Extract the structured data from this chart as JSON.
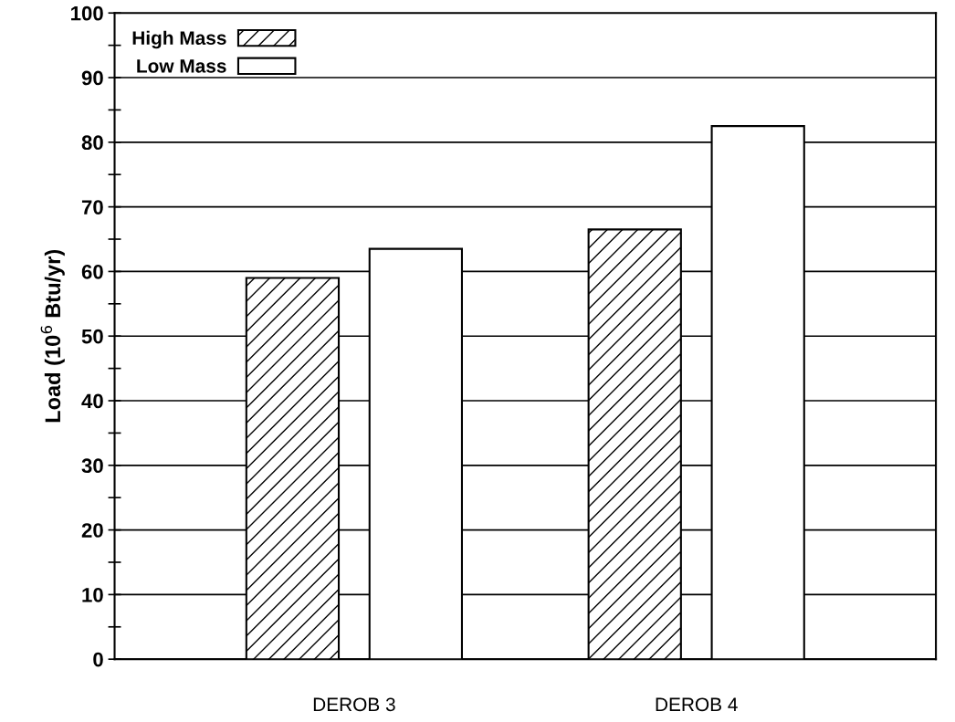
{
  "chart_data": {
    "type": "bar",
    "ylabel": "Load (10$^{6}$ Btu/yr)",
    "categories": [
      "DEROB 3",
      "DEROB 4"
    ],
    "series": [
      {
        "name": "High Mass",
        "color": "#000000",
        "values": [
          59,
          66.5
        ]
      },
      {
        "name": "Low Mass",
        "color": "#ffffff",
        "values": [
          63.5,
          82.5
        ]
      }
    ],
    "ylim": [
      0,
      100
    ],
    "yticks": [
      0,
      {
        "value": 5,
        "label": null
      },
      10,
      {
        "value": 15,
        "label": null
      },
      20,
      {
        "value": 25,
        "label": null
      },
      30,
      {
        "value": 35,
        "label": null
      },
      40,
      {
        "value": 45,
        "label": null
      },
      50,
      {
        "value": 55,
        "label": null
      },
      60,
      {
        "value": 65,
        "label": null
      },
      70,
      {
        "value": 75,
        "label": null
      },
      80,
      {
        "value": 85,
        "label": null
      },
      90,
      {
        "value": 95,
        "label": null
      },
      100
    ],
    "grid": "y",
    "legend": "top left"
  }
}
